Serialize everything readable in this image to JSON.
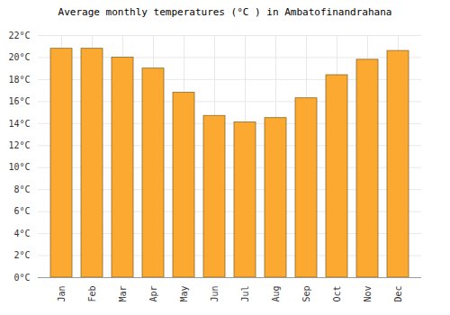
{
  "chart_data": {
    "type": "bar",
    "title": "Average monthly temperatures (°C ) in Ambatofinandrahana",
    "categories": [
      "Jan",
      "Feb",
      "Mar",
      "Apr",
      "May",
      "Jun",
      "Jul",
      "Aug",
      "Sep",
      "Oct",
      "Nov",
      "Dec"
    ],
    "values": [
      20.8,
      20.8,
      20.0,
      19.0,
      16.8,
      14.7,
      14.1,
      14.5,
      16.3,
      18.4,
      19.8,
      20.6
    ],
    "color": "#fba930",
    "ylim": [
      0,
      22
    ],
    "yticks": [
      {
        "value": 0,
        "label": "0°C"
      },
      {
        "value": 2,
        "label": "2°C"
      },
      {
        "value": 4,
        "label": "4°C"
      },
      {
        "value": 6,
        "label": "6°C"
      },
      {
        "value": 8,
        "label": "8°C"
      },
      {
        "value": 10,
        "label": "10°C"
      },
      {
        "value": 12,
        "label": "12°C"
      },
      {
        "value": 14,
        "label": "14°C"
      },
      {
        "value": 16,
        "label": "16°C"
      },
      {
        "value": 18,
        "label": "18°C"
      },
      {
        "value": 20,
        "label": "20°C"
      },
      {
        "value": 22,
        "label": "22°C"
      }
    ],
    "grid": true
  }
}
